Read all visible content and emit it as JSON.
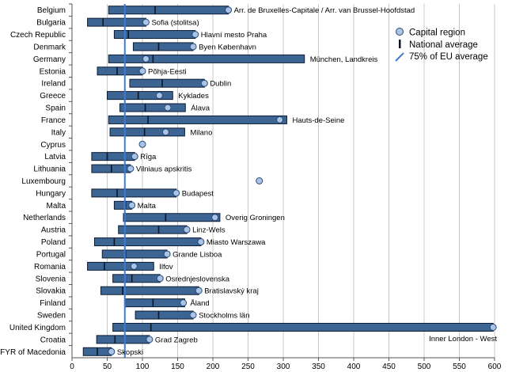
{
  "chart_data": {
    "type": "bar",
    "orientation": "horizontal",
    "title": "",
    "xlabel": "",
    "ylabel": "",
    "xlim": [
      0,
      600
    ],
    "xticks": [
      0,
      50,
      100,
      150,
      200,
      250,
      300,
      350,
      400,
      450,
      500,
      550,
      600
    ],
    "grid": true,
    "eu_threshold": 75,
    "legend": {
      "position": "top-right",
      "capital": "Capital region",
      "national": "National average",
      "threshold": "75% of EU average"
    },
    "rows": [
      {
        "country": "Belgium",
        "min": 52,
        "max": 222,
        "national": 118,
        "capital": 222,
        "label": "Arr. de Bruxelles-Capitale / Arr. van Brussel-Hoofdstad"
      },
      {
        "country": "Bulgaria",
        "min": 22,
        "max": 105,
        "national": 44,
        "capital": 105,
        "label": "Sofia (stolitsa)"
      },
      {
        "country": "Czech Republic",
        "min": 60,
        "max": 175,
        "national": 80,
        "capital": 175,
        "label": "Hlavní mesto Praha"
      },
      {
        "country": "Denmark",
        "min": 87,
        "max": 172,
        "national": 123,
        "capital": 172,
        "label": "Byen København"
      },
      {
        "country": "Germany",
        "min": 52,
        "max": 330,
        "national": 115,
        "capital": 105,
        "label": "München, Landkreis"
      },
      {
        "country": "Estonia",
        "min": 36,
        "max": 100,
        "national": 64,
        "capital": 100,
        "label": "Põhja-Eesti"
      },
      {
        "country": "Ireland",
        "min": 82,
        "max": 188,
        "national": 128,
        "capital": 188,
        "label": "Dublin"
      },
      {
        "country": "Greece",
        "min": 50,
        "max": 143,
        "national": 94,
        "capital": 124,
        "label": "Kyklades"
      },
      {
        "country": "Spain",
        "min": 68,
        "max": 161,
        "national": 104,
        "capital": 136,
        "label": "Álava"
      },
      {
        "country": "France",
        "min": 52,
        "max": 305,
        "national": 108,
        "capital": 295,
        "label": "Hauts-de-Seine"
      },
      {
        "country": "Italy",
        "min": 54,
        "max": 160,
        "national": 103,
        "capital": 133,
        "label": "Milano"
      },
      {
        "country": "Cyprus",
        "min": null,
        "max": null,
        "national": 100,
        "capital": 100,
        "label": ""
      },
      {
        "country": "Latvia",
        "min": 28,
        "max": 89,
        "national": 50,
        "capital": 89,
        "label": "Rīga"
      },
      {
        "country": "Lithuania",
        "min": 28,
        "max": 83,
        "national": 56,
        "capital": 83,
        "label": "Vilniaus apskritis"
      },
      {
        "country": "Luxembourg",
        "min": null,
        "max": null,
        "national": 266,
        "capital": 266,
        "label": ""
      },
      {
        "country": "Hungary",
        "min": 28,
        "max": 148,
        "national": 64,
        "capital": 148,
        "label": "Budapest"
      },
      {
        "country": "Malta",
        "min": 60,
        "max": 85,
        "national": 76,
        "capital": 85,
        "label": "Malta"
      },
      {
        "country": "Netherlands",
        "min": 73,
        "max": 210,
        "national": 133,
        "capital": 203,
        "label": "Overig Groningen"
      },
      {
        "country": "Austria",
        "min": 66,
        "max": 163,
        "national": 123,
        "capital": 163,
        "label": "Linz-Wels"
      },
      {
        "country": "Poland",
        "min": 32,
        "max": 183,
        "national": 60,
        "capital": 183,
        "label": "Miasto Warszawa"
      },
      {
        "country": "Portugal",
        "min": 43,
        "max": 135,
        "national": 76,
        "capital": 135,
        "label": "Grande Lisboa"
      },
      {
        "country": "Romania",
        "min": 22,
        "max": 116,
        "national": 46,
        "capital": 88,
        "label": "Ilfov"
      },
      {
        "country": "Slovenia",
        "min": 58,
        "max": 125,
        "national": 85,
        "capital": 125,
        "label": "Osrednjeslovenska"
      },
      {
        "country": "Slovakia",
        "min": 41,
        "max": 180,
        "national": 72,
        "capital": 180,
        "label": "Bratislavský kraj"
      },
      {
        "country": "Finland",
        "min": 75,
        "max": 160,
        "national": 115,
        "capital": 158,
        "label": "Åland"
      },
      {
        "country": "Sweden",
        "min": 90,
        "max": 172,
        "national": 123,
        "capital": 172,
        "label": "Stockholms län"
      },
      {
        "country": "United Kingdom",
        "min": 58,
        "max": 598,
        "national": 112,
        "capital": 598,
        "label": "Inner London - West"
      },
      {
        "country": "Croatia",
        "min": 35,
        "max": 110,
        "national": 61,
        "capital": 110,
        "label": "Grad Zagreb"
      },
      {
        "country": "FYR of Macedonia",
        "min": 16,
        "max": 56,
        "national": 36,
        "capital": 56,
        "label": "Skopski"
      }
    ]
  },
  "colors": {
    "bar_fill": "#3d6593",
    "bar_stroke": "#0c1c33",
    "marker_fill": "#a9c4e6",
    "marker_stroke": "#2a4a72",
    "threshold_line": "#3d7bd6",
    "grid": "#c8c8c8",
    "axis": "#555555",
    "text": "#000000"
  }
}
